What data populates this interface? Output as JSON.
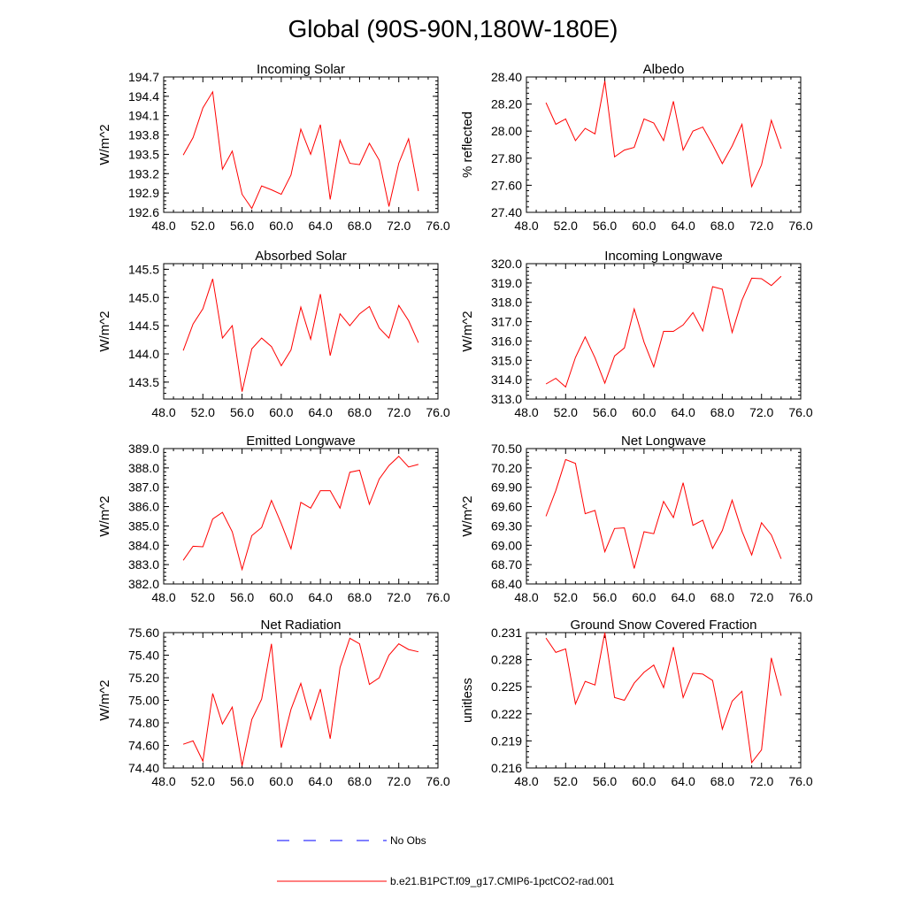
{
  "title": "Global (90S-90N,180W-180E)",
  "colors": {
    "model": "#ff0000",
    "obs": "#0000ff",
    "axis": "#000000",
    "background": "#ffffff"
  },
  "legend": {
    "entries": [
      {
        "label": "No Obs",
        "style": "dashed",
        "color": "#0000ff"
      },
      {
        "label": "b.e21.B1PCT.f09_g17.CMIP6-1pctCO2-rad.001",
        "style": "solid",
        "color": "#ff0000"
      }
    ]
  },
  "chart_data": [
    {
      "type": "line",
      "title": "Incoming Solar",
      "xlabel": "",
      "ylabel": "W/m^2",
      "xlim": [
        48,
        76
      ],
      "ylim": [
        192.6,
        194.7
      ],
      "xticks": [
        "48.0",
        "52.0",
        "56.0",
        "60.0",
        "64.0",
        "68.0",
        "72.0",
        "76.0"
      ],
      "yticks": [
        "192.6",
        "192.9",
        "193.2",
        "193.5",
        "193.8",
        "194.1",
        "194.4",
        "194.7"
      ],
      "grid": false,
      "x": [
        50,
        51,
        52,
        53,
        54,
        55,
        56,
        57,
        58,
        59,
        60,
        61,
        62,
        63,
        64,
        65,
        66,
        67,
        68,
        69,
        70,
        71,
        72,
        73,
        74
      ],
      "series": [
        {
          "name": "b.e21.B1PCT.f09_g17.CMIP6-1pctCO2-rad.001",
          "values": [
            193.49,
            193.76,
            194.22,
            194.47,
            193.27,
            193.55,
            192.88,
            192.66,
            193.01,
            192.95,
            192.88,
            193.18,
            193.89,
            193.5,
            193.96,
            192.8,
            193.72,
            193.36,
            193.34,
            193.67,
            193.41,
            192.69,
            193.36,
            193.74,
            192.93
          ]
        }
      ]
    },
    {
      "type": "line",
      "title": "Albedo",
      "xlabel": "",
      "ylabel": "% reflected",
      "xlim": [
        48,
        76
      ],
      "ylim": [
        27.4,
        28.4
      ],
      "xticks": [
        "48.0",
        "52.0",
        "56.0",
        "60.0",
        "64.0",
        "68.0",
        "72.0",
        "76.0"
      ],
      "yticks": [
        "27.40",
        "27.60",
        "27.80",
        "28.00",
        "28.20",
        "28.40"
      ],
      "grid": false,
      "x": [
        50,
        51,
        52,
        53,
        54,
        55,
        56,
        57,
        58,
        59,
        60,
        61,
        62,
        63,
        64,
        65,
        66,
        67,
        68,
        69,
        70,
        71,
        72,
        73,
        74
      ],
      "series": [
        {
          "name": "b.e21.B1PCT.f09_g17.CMIP6-1pctCO2-rad.001",
          "values": [
            28.21,
            28.05,
            28.09,
            27.93,
            28.02,
            27.98,
            28.37,
            27.81,
            27.86,
            27.88,
            28.09,
            28.06,
            27.93,
            28.22,
            27.86,
            28.0,
            28.03,
            27.9,
            27.76,
            27.89,
            28.05,
            27.59,
            27.75,
            28.08,
            27.87
          ]
        }
      ]
    },
    {
      "type": "line",
      "title": "Absorbed Solar",
      "xlabel": "",
      "ylabel": "W/m^2",
      "xlim": [
        48,
        76
      ],
      "ylim": [
        143.2,
        145.6
      ],
      "xticks": [
        "48.0",
        "52.0",
        "56.0",
        "60.0",
        "64.0",
        "68.0",
        "72.0",
        "76.0"
      ],
      "yticks": [
        "143.5",
        "144.0",
        "144.5",
        "145.0",
        "145.5"
      ],
      "grid": false,
      "x": [
        50,
        51,
        52,
        53,
        54,
        55,
        56,
        57,
        58,
        59,
        60,
        61,
        62,
        63,
        64,
        65,
        66,
        67,
        68,
        69,
        70,
        71,
        72,
        73,
        74
      ],
      "series": [
        {
          "name": "b.e21.B1PCT.f09_g17.CMIP6-1pctCO2-rad.001",
          "values": [
            144.06,
            144.53,
            144.8,
            145.33,
            144.28,
            144.5,
            143.33,
            144.09,
            144.28,
            144.13,
            143.79,
            144.07,
            144.83,
            144.26,
            145.06,
            143.97,
            144.71,
            144.5,
            144.71,
            144.84,
            144.46,
            144.28,
            144.86,
            144.59,
            144.2
          ]
        }
      ]
    },
    {
      "type": "line",
      "title": "Incoming Longwave",
      "xlabel": "",
      "ylabel": "W/m^2",
      "xlim": [
        48,
        76
      ],
      "ylim": [
        313,
        320
      ],
      "xticks": [
        "48.0",
        "52.0",
        "56.0",
        "60.0",
        "64.0",
        "68.0",
        "72.0",
        "76.0"
      ],
      "yticks": [
        "313.0",
        "314.0",
        "315.0",
        "316.0",
        "317.0",
        "318.0",
        "319.0",
        "320.0"
      ],
      "grid": false,
      "x": [
        50,
        51,
        52,
        53,
        54,
        55,
        56,
        57,
        58,
        59,
        60,
        61,
        62,
        63,
        64,
        65,
        66,
        67,
        68,
        69,
        70,
        71,
        72,
        73,
        74
      ],
      "series": [
        {
          "name": "b.e21.B1PCT.f09_g17.CMIP6-1pctCO2-rad.001",
          "values": [
            313.78,
            314.07,
            313.62,
            315.15,
            316.21,
            315.13,
            313.82,
            315.23,
            315.64,
            317.66,
            315.94,
            314.66,
            316.5,
            316.5,
            316.83,
            317.47,
            316.52,
            318.81,
            318.68,
            316.44,
            318.11,
            319.25,
            319.22,
            318.87,
            319.35
          ]
        }
      ]
    },
    {
      "type": "line",
      "title": "Emitted Longwave",
      "xlabel": "",
      "ylabel": "W/m^2",
      "xlim": [
        48,
        76
      ],
      "ylim": [
        382,
        389
      ],
      "xticks": [
        "48.0",
        "52.0",
        "56.0",
        "60.0",
        "64.0",
        "68.0",
        "72.0",
        "76.0"
      ],
      "yticks": [
        "382.0",
        "383.0",
        "384.0",
        "385.0",
        "386.0",
        "387.0",
        "388.0",
        "389.0"
      ],
      "grid": false,
      "x": [
        50,
        51,
        52,
        53,
        54,
        55,
        56,
        57,
        58,
        59,
        60,
        61,
        62,
        63,
        64,
        65,
        66,
        67,
        68,
        69,
        70,
        71,
        72,
        73,
        74
      ],
      "series": [
        {
          "name": "b.e21.B1PCT.f09_g17.CMIP6-1pctCO2-rad.001",
          "values": [
            383.22,
            383.95,
            383.92,
            385.36,
            385.7,
            384.7,
            382.75,
            384.5,
            384.92,
            386.32,
            385.12,
            383.82,
            386.22,
            385.92,
            386.82,
            386.82,
            385.92,
            387.78,
            387.88,
            386.12,
            387.42,
            388.12,
            388.6,
            388.05,
            388.18
          ]
        }
      ]
    },
    {
      "type": "line",
      "title": "Net Longwave",
      "xlabel": "",
      "ylabel": "W/m^2",
      "xlim": [
        48,
        76
      ],
      "ylim": [
        68.4,
        70.5
      ],
      "xticks": [
        "48.0",
        "52.0",
        "56.0",
        "60.0",
        "64.0",
        "68.0",
        "72.0",
        "76.0"
      ],
      "yticks": [
        "68.40",
        "68.70",
        "69.00",
        "69.30",
        "69.60",
        "69.90",
        "70.20",
        "70.50"
      ],
      "grid": false,
      "x": [
        50,
        51,
        52,
        53,
        54,
        55,
        56,
        57,
        58,
        59,
        60,
        61,
        62,
        63,
        64,
        65,
        66,
        67,
        68,
        69,
        70,
        71,
        72,
        73,
        74
      ],
      "series": [
        {
          "name": "b.e21.B1PCT.f09_g17.CMIP6-1pctCO2-rad.001",
          "values": [
            69.45,
            69.85,
            70.33,
            70.27,
            69.49,
            69.54,
            68.9,
            69.26,
            69.27,
            68.64,
            69.21,
            69.18,
            69.68,
            69.43,
            69.97,
            69.31,
            69.39,
            68.95,
            69.23,
            69.7,
            69.22,
            68.85,
            69.35,
            69.16,
            68.79
          ]
        }
      ]
    },
    {
      "type": "line",
      "title": "Net Radiation",
      "xlabel": "",
      "ylabel": "W/m^2",
      "xlim": [
        48,
        76
      ],
      "ylim": [
        74.4,
        75.6
      ],
      "xticks": [
        "48.0",
        "52.0",
        "56.0",
        "60.0",
        "64.0",
        "68.0",
        "72.0",
        "76.0"
      ],
      "yticks": [
        "74.40",
        "74.60",
        "74.80",
        "75.00",
        "75.20",
        "75.40",
        "75.60"
      ],
      "grid": false,
      "x": [
        50,
        51,
        52,
        53,
        54,
        55,
        56,
        57,
        58,
        59,
        60,
        61,
        62,
        63,
        64,
        65,
        66,
        67,
        68,
        69,
        70,
        71,
        72,
        73,
        74
      ],
      "series": [
        {
          "name": "b.e21.B1PCT.f09_g17.CMIP6-1pctCO2-rad.001",
          "values": [
            74.61,
            74.64,
            74.46,
            75.06,
            74.79,
            74.94,
            74.42,
            74.83,
            75.01,
            75.5,
            74.58,
            74.92,
            75.15,
            74.83,
            75.1,
            74.66,
            75.29,
            75.55,
            75.5,
            75.14,
            75.2,
            75.4,
            75.5,
            75.45,
            75.43
          ]
        }
      ]
    },
    {
      "type": "line",
      "title": "Ground Snow Covered Fraction",
      "xlabel": "",
      "ylabel": "unitless",
      "xlim": [
        48,
        76
      ],
      "ylim": [
        0.216,
        0.231
      ],
      "xticks": [
        "48.0",
        "52.0",
        "56.0",
        "60.0",
        "64.0",
        "68.0",
        "72.0",
        "76.0"
      ],
      "yticks": [
        "0.216",
        "0.219",
        "0.222",
        "0.225",
        "0.228",
        "0.231"
      ],
      "grid": false,
      "x": [
        50,
        51,
        52,
        53,
        54,
        55,
        56,
        57,
        58,
        59,
        60,
        61,
        62,
        63,
        64,
        65,
        66,
        67,
        68,
        69,
        70,
        71,
        72,
        73,
        74
      ],
      "series": [
        {
          "name": "b.e21.B1PCT.f09_g17.CMIP6-1pctCO2-rad.001",
          "values": [
            0.2304,
            0.2288,
            0.2292,
            0.2231,
            0.2256,
            0.2252,
            0.231,
            0.2238,
            0.2235,
            0.2254,
            0.2266,
            0.2274,
            0.2249,
            0.2294,
            0.2238,
            0.2265,
            0.2264,
            0.2257,
            0.2203,
            0.2234,
            0.2245,
            0.2166,
            0.218,
            0.2282,
            0.224
          ]
        }
      ]
    }
  ]
}
